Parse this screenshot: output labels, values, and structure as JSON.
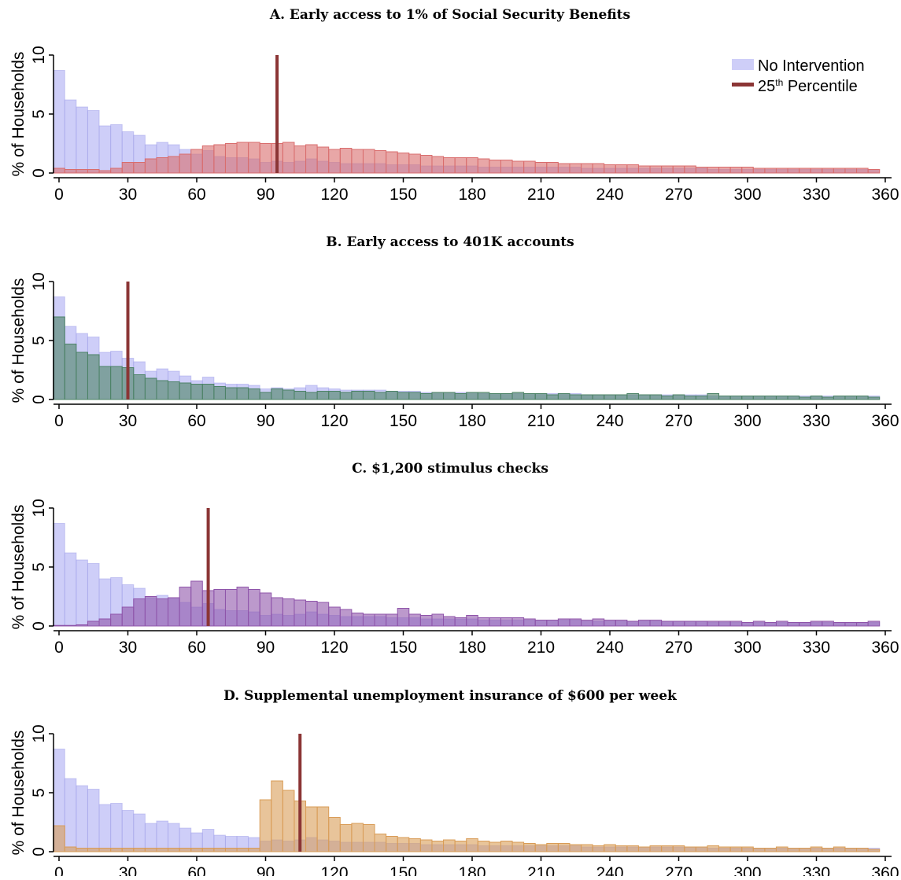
{
  "chart_data": [
    {
      "type": "bar",
      "title": "A. Early access to 1% of Social Security Benefits",
      "xlabel": "",
      "ylabel": "% of Households",
      "xlim": [
        0,
        360
      ],
      "ylim": [
        0,
        10
      ],
      "xticks": [
        "0",
        "30",
        "60",
        "90",
        "120",
        "150",
        "180",
        "210",
        "240",
        "270",
        "300",
        "330",
        "360"
      ],
      "yticks": [
        "0",
        "5",
        "10"
      ],
      "bin_width": 5,
      "percentile_25": 95,
      "legend": {
        "position": "top-right",
        "entries": [
          "No Intervention",
          "25th Percentile"
        ]
      },
      "series": [
        {
          "name": "No Intervention",
          "color": "#b3b3f5",
          "values": [
            8.7,
            6.2,
            5.6,
            5.3,
            4.0,
            4.1,
            3.5,
            3.2,
            2.4,
            2.6,
            2.4,
            2.0,
            1.6,
            1.9,
            1.4,
            1.3,
            1.3,
            1.2,
            0.9,
            1.0,
            0.9,
            1.0,
            1.2,
            1.0,
            0.9,
            0.8,
            0.8,
            0.8,
            0.8,
            0.7,
            0.7,
            0.7,
            0.6,
            0.6,
            0.6,
            0.6,
            0.6,
            0.5,
            0.5,
            0.5,
            0.5,
            0.5,
            0.5,
            0.5,
            0.5,
            0.5,
            0.4,
            0.4,
            0.4,
            0.4,
            0.4,
            0.4,
            0.4,
            0.4,
            0.4,
            0.4,
            0.4,
            0.3,
            0.3,
            0.3,
            0.3,
            0.3,
            0.3,
            0.3,
            0.3,
            0.3,
            0.3,
            0.3,
            0.3,
            0.3,
            0.3,
            0.3
          ]
        },
        {
          "name": "",
          "color": "#ff8080",
          "values": [
            0.4,
            0.3,
            0.3,
            0.3,
            0.2,
            0.4,
            0.9,
            0.9,
            1.2,
            1.3,
            1.4,
            1.6,
            2.0,
            2.3,
            2.4,
            2.5,
            2.6,
            2.6,
            2.5,
            2.5,
            2.6,
            2.3,
            2.4,
            2.2,
            2.0,
            2.1,
            2.0,
            2.0,
            1.9,
            1.8,
            1.7,
            1.6,
            1.5,
            1.4,
            1.3,
            1.3,
            1.3,
            1.2,
            1.1,
            1.1,
            1.0,
            1.0,
            0.9,
            0.9,
            0.8,
            0.8,
            0.8,
            0.8,
            0.7,
            0.7,
            0.7,
            0.6,
            0.6,
            0.6,
            0.6,
            0.6,
            0.5,
            0.5,
            0.5,
            0.5,
            0.5,
            0.4,
            0.4,
            0.4,
            0.4,
            0.4,
            0.4,
            0.4,
            0.4,
            0.4,
            0.4,
            0.3
          ]
        }
      ]
    },
    {
      "type": "bar",
      "title": "B. Early access to 401K accounts",
      "xlabel": "",
      "ylabel": "% of Households",
      "xlim": [
        0,
        360
      ],
      "ylim": [
        0,
        10
      ],
      "xticks": [
        "0",
        "30",
        "60",
        "90",
        "120",
        "150",
        "180",
        "210",
        "240",
        "270",
        "300",
        "330",
        "360"
      ],
      "yticks": [
        "0",
        "5",
        "10"
      ],
      "bin_width": 5,
      "percentile_25": 30,
      "series": [
        {
          "name": "No Intervention",
          "color": "#b3b3f5",
          "values": [
            8.7,
            6.2,
            5.6,
            5.3,
            4.0,
            4.1,
            3.5,
            3.2,
            2.4,
            2.6,
            2.4,
            2.0,
            1.6,
            1.9,
            1.4,
            1.3,
            1.3,
            1.2,
            0.9,
            1.0,
            0.9,
            1.0,
            1.2,
            1.0,
            0.9,
            0.8,
            0.8,
            0.8,
            0.8,
            0.7,
            0.7,
            0.7,
            0.6,
            0.6,
            0.6,
            0.6,
            0.6,
            0.5,
            0.5,
            0.5,
            0.5,
            0.5,
            0.5,
            0.5,
            0.5,
            0.5,
            0.4,
            0.4,
            0.4,
            0.4,
            0.4,
            0.4,
            0.4,
            0.4,
            0.4,
            0.4,
            0.4,
            0.3,
            0.3,
            0.3,
            0.3,
            0.3,
            0.3,
            0.3,
            0.3,
            0.3,
            0.3,
            0.3,
            0.3,
            0.3,
            0.3,
            0.3
          ]
        },
        {
          "name": "",
          "color": "#5a9a78",
          "values": [
            7.0,
            4.7,
            4.0,
            3.8,
            2.8,
            2.8,
            2.7,
            2.1,
            1.8,
            1.6,
            1.5,
            1.4,
            1.3,
            1.3,
            1.1,
            1.0,
            1.0,
            0.9,
            0.6,
            0.9,
            0.8,
            0.7,
            0.6,
            0.7,
            0.7,
            0.6,
            0.7,
            0.7,
            0.6,
            0.7,
            0.6,
            0.6,
            0.5,
            0.6,
            0.6,
            0.5,
            0.6,
            0.6,
            0.5,
            0.5,
            0.6,
            0.5,
            0.5,
            0.4,
            0.5,
            0.4,
            0.4,
            0.4,
            0.4,
            0.4,
            0.5,
            0.4,
            0.4,
            0.3,
            0.4,
            0.3,
            0.3,
            0.5,
            0.3,
            0.3,
            0.3,
            0.3,
            0.3,
            0.3,
            0.3,
            0.2,
            0.3,
            0.2,
            0.3,
            0.3,
            0.3,
            0.2
          ]
        }
      ]
    },
    {
      "type": "bar",
      "title": "C. $1,200 stimulus checks",
      "xlabel": "",
      "ylabel": "% of Households",
      "xlim": [
        0,
        360
      ],
      "ylim": [
        0,
        10
      ],
      "xticks": [
        "0",
        "30",
        "60",
        "90",
        "120",
        "150",
        "180",
        "210",
        "240",
        "270",
        "300",
        "330",
        "360"
      ],
      "yticks": [
        "0",
        "5",
        "10"
      ],
      "bin_width": 5,
      "percentile_25": 65,
      "series": [
        {
          "name": "No Intervention",
          "color": "#b3b3f5",
          "values": [
            8.7,
            6.2,
            5.6,
            5.3,
            4.0,
            4.1,
            3.5,
            3.2,
            2.4,
            2.6,
            2.4,
            2.0,
            1.6,
            1.9,
            1.4,
            1.3,
            1.3,
            1.2,
            0.9,
            1.0,
            0.9,
            1.0,
            1.2,
            1.0,
            0.9,
            0.8,
            0.8,
            0.8,
            0.8,
            0.7,
            0.7,
            0.7,
            0.6,
            0.6,
            0.6,
            0.6,
            0.6,
            0.5,
            0.5,
            0.5,
            0.5,
            0.5,
            0.5,
            0.5,
            0.5,
            0.5,
            0.4,
            0.4,
            0.4,
            0.4,
            0.4,
            0.4,
            0.4,
            0.4,
            0.4,
            0.4,
            0.4,
            0.3,
            0.3,
            0.3,
            0.3,
            0.3,
            0.3,
            0.3,
            0.3,
            0.3,
            0.3,
            0.3,
            0.3,
            0.3,
            0.3,
            0.3
          ]
        },
        {
          "name": "",
          "color": "#a864c8",
          "values": [
            0.05,
            0.05,
            0.1,
            0.4,
            0.6,
            1.0,
            1.6,
            2.3,
            2.5,
            2.3,
            2.4,
            3.3,
            3.8,
            3.0,
            3.1,
            3.1,
            3.3,
            3.1,
            2.8,
            2.4,
            2.3,
            2.2,
            2.1,
            2.0,
            1.6,
            1.4,
            1.1,
            1.0,
            1.0,
            1.0,
            1.5,
            1.0,
            0.9,
            1.0,
            0.8,
            0.7,
            0.9,
            0.7,
            0.7,
            0.7,
            0.7,
            0.6,
            0.5,
            0.5,
            0.6,
            0.6,
            0.5,
            0.6,
            0.5,
            0.5,
            0.4,
            0.5,
            0.5,
            0.4,
            0.4,
            0.4,
            0.4,
            0.4,
            0.4,
            0.4,
            0.3,
            0.4,
            0.3,
            0.4,
            0.3,
            0.3,
            0.4,
            0.4,
            0.3,
            0.3,
            0.3,
            0.4
          ]
        }
      ]
    },
    {
      "type": "bar",
      "title": "D. Supplemental unemployment insurance of $600 per week",
      "xlabel": "",
      "ylabel": "% of Households",
      "xlim": [
        0,
        360
      ],
      "ylim": [
        0,
        10
      ],
      "xticks": [
        "0",
        "30",
        "60",
        "90",
        "120",
        "150",
        "180",
        "210",
        "240",
        "270",
        "300",
        "330",
        "360"
      ],
      "yticks": [
        "0",
        "5",
        "10"
      ],
      "bin_width": 5,
      "percentile_25": 105,
      "series": [
        {
          "name": "No Intervention",
          "color": "#b3b3f5",
          "values": [
            8.7,
            6.2,
            5.6,
            5.3,
            4.0,
            4.1,
            3.5,
            3.2,
            2.4,
            2.6,
            2.4,
            2.0,
            1.6,
            1.9,
            1.4,
            1.3,
            1.3,
            1.2,
            0.9,
            1.0,
            0.9,
            1.0,
            1.2,
            1.0,
            0.9,
            0.8,
            0.8,
            0.8,
            0.8,
            0.7,
            0.7,
            0.7,
            0.6,
            0.6,
            0.6,
            0.6,
            0.6,
            0.5,
            0.5,
            0.5,
            0.5,
            0.5,
            0.5,
            0.5,
            0.5,
            0.5,
            0.4,
            0.4,
            0.4,
            0.4,
            0.4,
            0.4,
            0.4,
            0.4,
            0.4,
            0.4,
            0.4,
            0.3,
            0.3,
            0.3,
            0.3,
            0.3,
            0.3,
            0.3,
            0.3,
            0.3,
            0.3,
            0.3,
            0.3,
            0.3,
            0.3,
            0.3
          ]
        },
        {
          "name": "",
          "color": "#ffb866",
          "values": [
            2.2,
            0.4,
            0.3,
            0.3,
            0.3,
            0.3,
            0.3,
            0.3,
            0.3,
            0.3,
            0.3,
            0.3,
            0.3,
            0.3,
            0.3,
            0.3,
            0.3,
            0.3,
            4.4,
            6.0,
            5.2,
            4.3,
            3.8,
            3.8,
            2.9,
            2.3,
            2.4,
            2.3,
            1.5,
            1.3,
            1.2,
            1.1,
            1.0,
            0.9,
            1.0,
            0.9,
            1.1,
            0.9,
            0.8,
            0.9,
            0.8,
            0.7,
            0.6,
            0.7,
            0.7,
            0.6,
            0.6,
            0.5,
            0.6,
            0.5,
            0.5,
            0.4,
            0.5,
            0.5,
            0.5,
            0.4,
            0.4,
            0.5,
            0.4,
            0.4,
            0.4,
            0.3,
            0.3,
            0.4,
            0.3,
            0.3,
            0.4,
            0.3,
            0.4,
            0.3,
            0.3,
            0.2
          ]
        }
      ]
    }
  ],
  "colors": {
    "percentile_line": "#8b3535",
    "axis": "#000000"
  }
}
